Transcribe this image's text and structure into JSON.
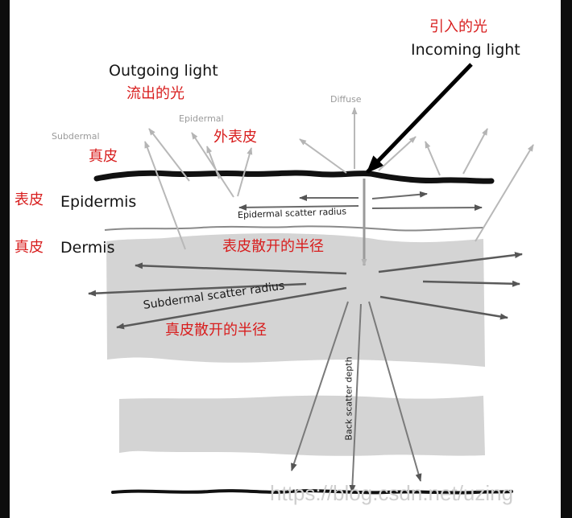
{
  "labels": {
    "incoming_cn": "引入的光",
    "incoming_en": "Incoming light",
    "outgoing_en": "Outgoing light",
    "outgoing_cn": "流出的光",
    "diffuse": "Diffuse",
    "subdermal_small": "Subdermal",
    "subdermal_small_cn": "真皮",
    "epidermal_small": "Epidermal",
    "epidermal_small_cn": "外表皮",
    "epidermis_cn": "表皮",
    "epidermis_en": "Epidermis",
    "dermis_cn": "真皮",
    "dermis_en": "Dermis",
    "epidermal_scatter": "Epidermal scatter radius",
    "epidermal_scatter_cn": "表皮散开的半径",
    "subdermal_scatter": "Subdermal scatter radius",
    "subdermal_scatter_cn": "真皮散开的半径",
    "back_scatter": "Back scatter depth",
    "watermark": "https://blog.csdn.net/uzing"
  },
  "colors": {
    "layer_fill": "#d4d4d4",
    "arrow_dark": "#5a5a5a",
    "arrow_light": "#b8b8b8",
    "label_red": "#d81e1e"
  }
}
